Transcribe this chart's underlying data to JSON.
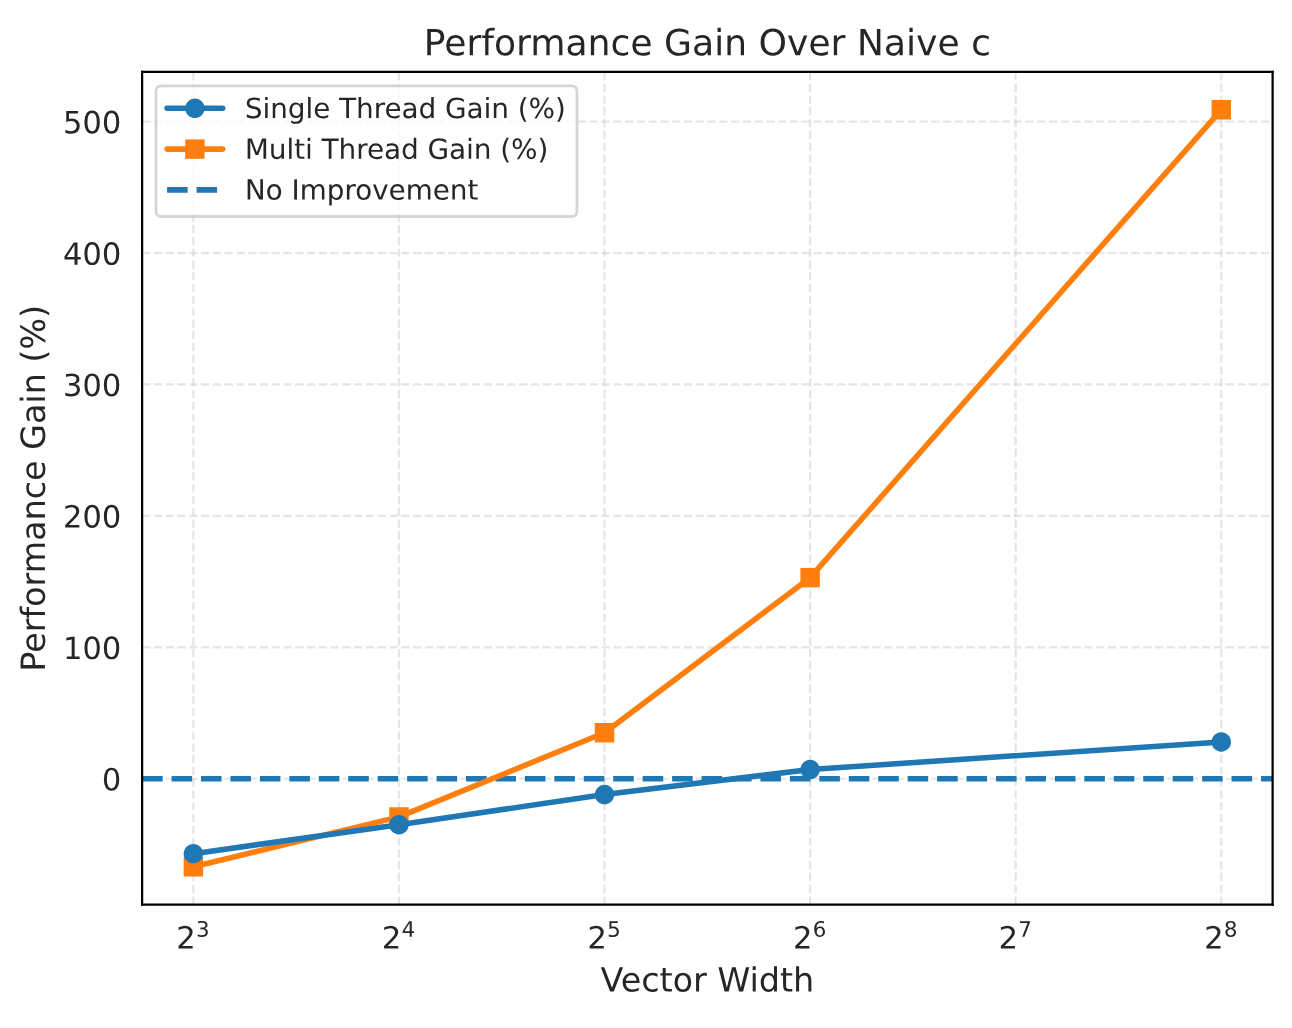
{
  "chart_data": {
    "type": "line",
    "title": "Performance Gain Over Naive c",
    "xlabel": "Vector Width",
    "ylabel": "Performance Gain (%)",
    "x": [
      8,
      16,
      32,
      64,
      256
    ],
    "series": [
      {
        "name": "Single Thread Gain (%)",
        "color": "#1f77b4",
        "marker": "circle",
        "values": [
          -57,
          -35,
          -12,
          7,
          28
        ]
      },
      {
        "name": "Multi Thread Gain (%)",
        "color": "#ff7f0e",
        "marker": "square",
        "values": [
          -67,
          -29,
          35,
          153,
          509
        ]
      }
    ],
    "log": "x",
    "xlim": [
      6.73,
      304.4
    ],
    "xticks": [
      {
        "value": 8,
        "label": "2$^{3}$"
      },
      {
        "value": 16,
        "label": "2$^{4}$"
      },
      {
        "value": 32,
        "label": "2$^{5}$"
      },
      {
        "value": 64,
        "label": "2$^{6}$"
      },
      {
        "value": 128,
        "label": "2$^{7}$"
      },
      {
        "value": 256,
        "label": "2$^{8}$"
      }
    ],
    "ylim": [
      -95.8,
      537.8
    ],
    "yticks": [
      0,
      100,
      200,
      300,
      400,
      500
    ],
    "ref_lines": [
      {
        "axis": "y",
        "value": 0,
        "label": "No Improvement",
        "color": "#1f77b4",
        "line_style": "dashed"
      }
    ],
    "grid": true,
    "legend": "top left",
    "line_style": "solid"
  }
}
